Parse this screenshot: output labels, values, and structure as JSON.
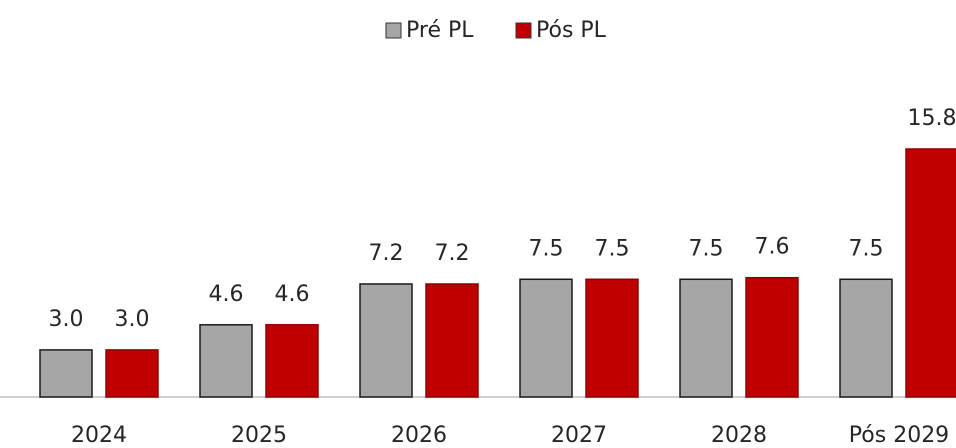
{
  "chart_data": {
    "type": "bar",
    "categories": [
      "2024",
      "2025",
      "2026",
      "2027",
      "2028",
      "Pós 2029"
    ],
    "series": [
      {
        "name": "Pré PL",
        "color": "#a6a6a6",
        "values": [
          3,
          4.6,
          7.2,
          7.5,
          7.5,
          7.5
        ],
        "value_labels": [
          "3.0",
          "4.6",
          "7.2",
          "7.5",
          "7.5",
          "7.5"
        ]
      },
      {
        "name": "Pós PL",
        "color": "#c00000",
        "values": [
          3,
          4.6,
          7.2,
          7.5,
          7.6,
          15.8
        ],
        "value_labels": [
          "3.0",
          "4.6",
          "7.2",
          "7.5",
          "7.6",
          "15.8"
        ]
      }
    ],
    "legend": "top"
  }
}
